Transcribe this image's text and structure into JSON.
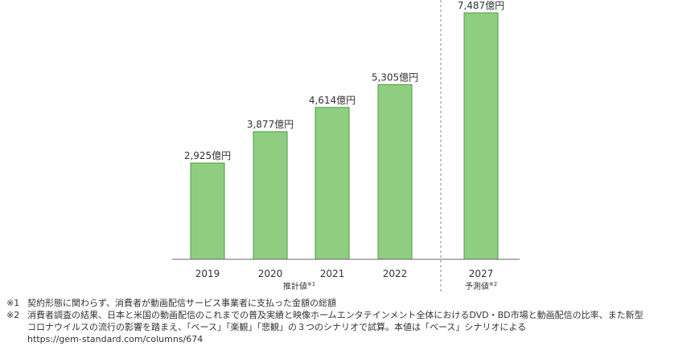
{
  "chart_data": {
    "type": "bar",
    "categories": [
      "2019",
      "2020",
      "2021",
      "2022",
      "2027"
    ],
    "values": [
      2925,
      3877,
      4614,
      5305,
      7487
    ],
    "value_labels": [
      "2,925億円",
      "3,877億円",
      "4,614億円",
      "5,305億円",
      "7,487億円"
    ],
    "bar_color": "#8fce80",
    "bar_border": "#4e9a45",
    "ylim": [
      0,
      7487
    ],
    "grid": false,
    "groups": [
      {
        "label": "推計値",
        "mark": "※1",
        "categories": [
          "2019",
          "2020",
          "2021",
          "2022"
        ]
      },
      {
        "label": "予測値",
        "mark": "※2",
        "categories": [
          "2027"
        ]
      }
    ]
  },
  "notes": [
    {
      "mark": "※1",
      "text": "契約形態に関わらず、消費者が動画配信サービス事業者に支払った金額の総額"
    },
    {
      "mark": "※2",
      "text": "消費者調査の結果、日本と米国の動画配信のこれまでの普及実績と映像ホームエンタテインメント全体におけるDVD・BD市場と動画配信の比率、また新型"
    },
    {
      "mark": "",
      "text": "コロナウイルスの流行の影響を踏まえ、「ベース」「楽観」「悲観」の３つのシナリオで試算。本値は「ベース」シナリオによる"
    }
  ],
  "source_url": "https://gem-standard.com/columns/674"
}
